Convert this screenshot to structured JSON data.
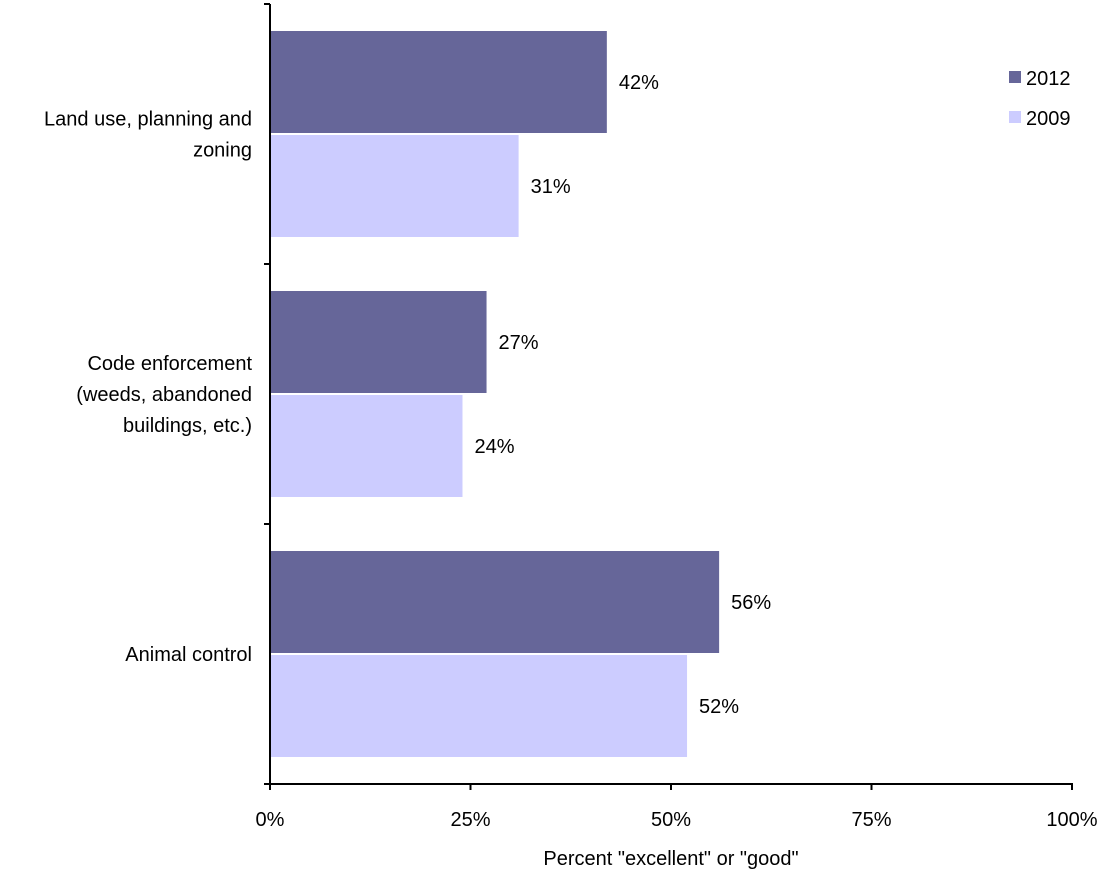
{
  "chart_data": {
    "type": "bar",
    "orientation": "horizontal",
    "categories": [
      [
        "Land use, planning and",
        "zoning"
      ],
      [
        "Code enforcement",
        "(weeds, abandoned",
        "buildings, etc.)"
      ],
      [
        "Animal control"
      ]
    ],
    "series": [
      {
        "name": "2012",
        "values": [
          42,
          27,
          56
        ],
        "labels": [
          "42%",
          "27%",
          "56%"
        ],
        "color": "#666699"
      },
      {
        "name": "2009",
        "values": [
          31,
          24,
          52
        ],
        "labels": [
          "31%",
          "24%",
          "52%"
        ],
        "color": "#ccccff"
      }
    ],
    "xlim": [
      0,
      100
    ],
    "xticks": [
      0,
      25,
      50,
      75,
      100
    ],
    "xtick_labels": [
      "0%",
      "25%",
      "50%",
      "75%",
      "100%"
    ],
    "xlabel": "Percent \"excellent\" or \"good\"",
    "ylabel": "",
    "title": "",
    "grid": false,
    "legend_position": "top-right"
  }
}
